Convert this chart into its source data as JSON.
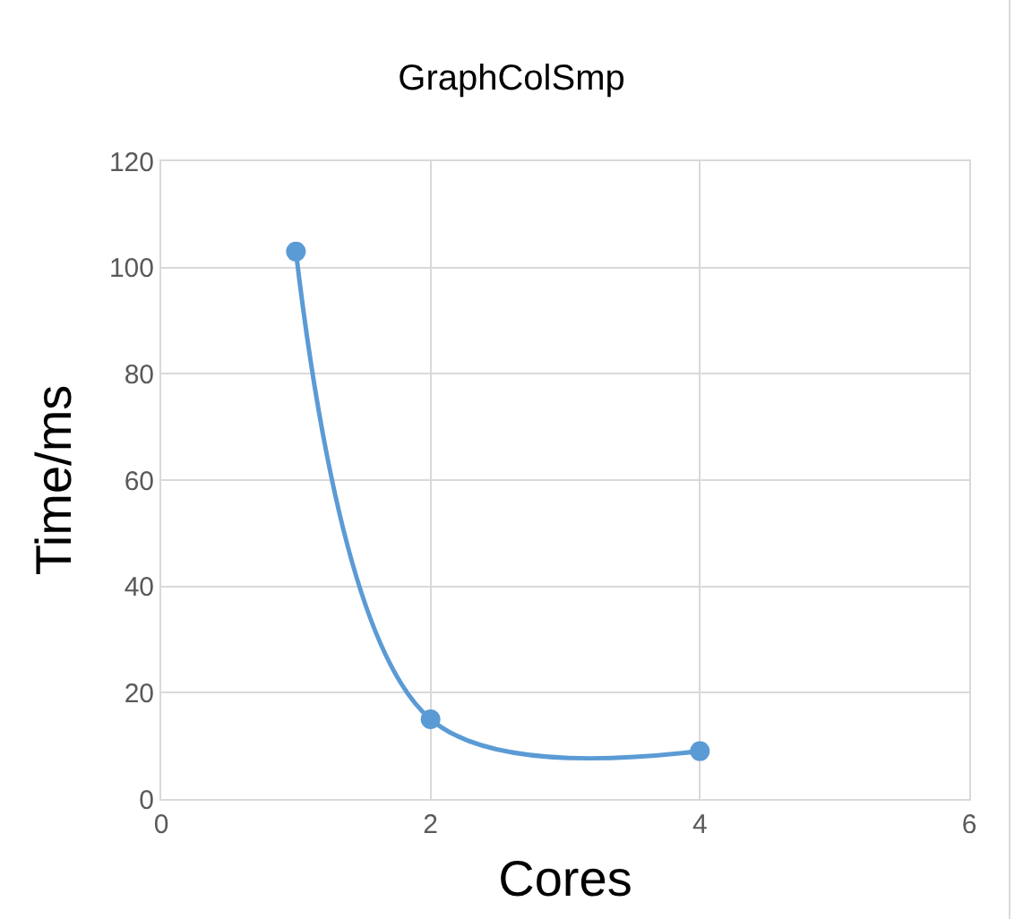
{
  "chart_data": {
    "type": "line",
    "title": "GraphColSmp",
    "xlabel": "Cores",
    "ylabel": "Time/ms",
    "x": [
      1,
      2,
      4
    ],
    "series": [
      {
        "color": "#5b9bd5",
        "values": [
          103,
          15,
          9
        ]
      }
    ],
    "xlim": [
      0,
      6
    ],
    "xticks": [
      0,
      2,
      4,
      6
    ],
    "ylim": [
      0,
      120
    ],
    "yticks": [
      0,
      20,
      40,
      60,
      80,
      100,
      120
    ],
    "grid": true,
    "marker": "circle",
    "line_style": "solid"
  }
}
